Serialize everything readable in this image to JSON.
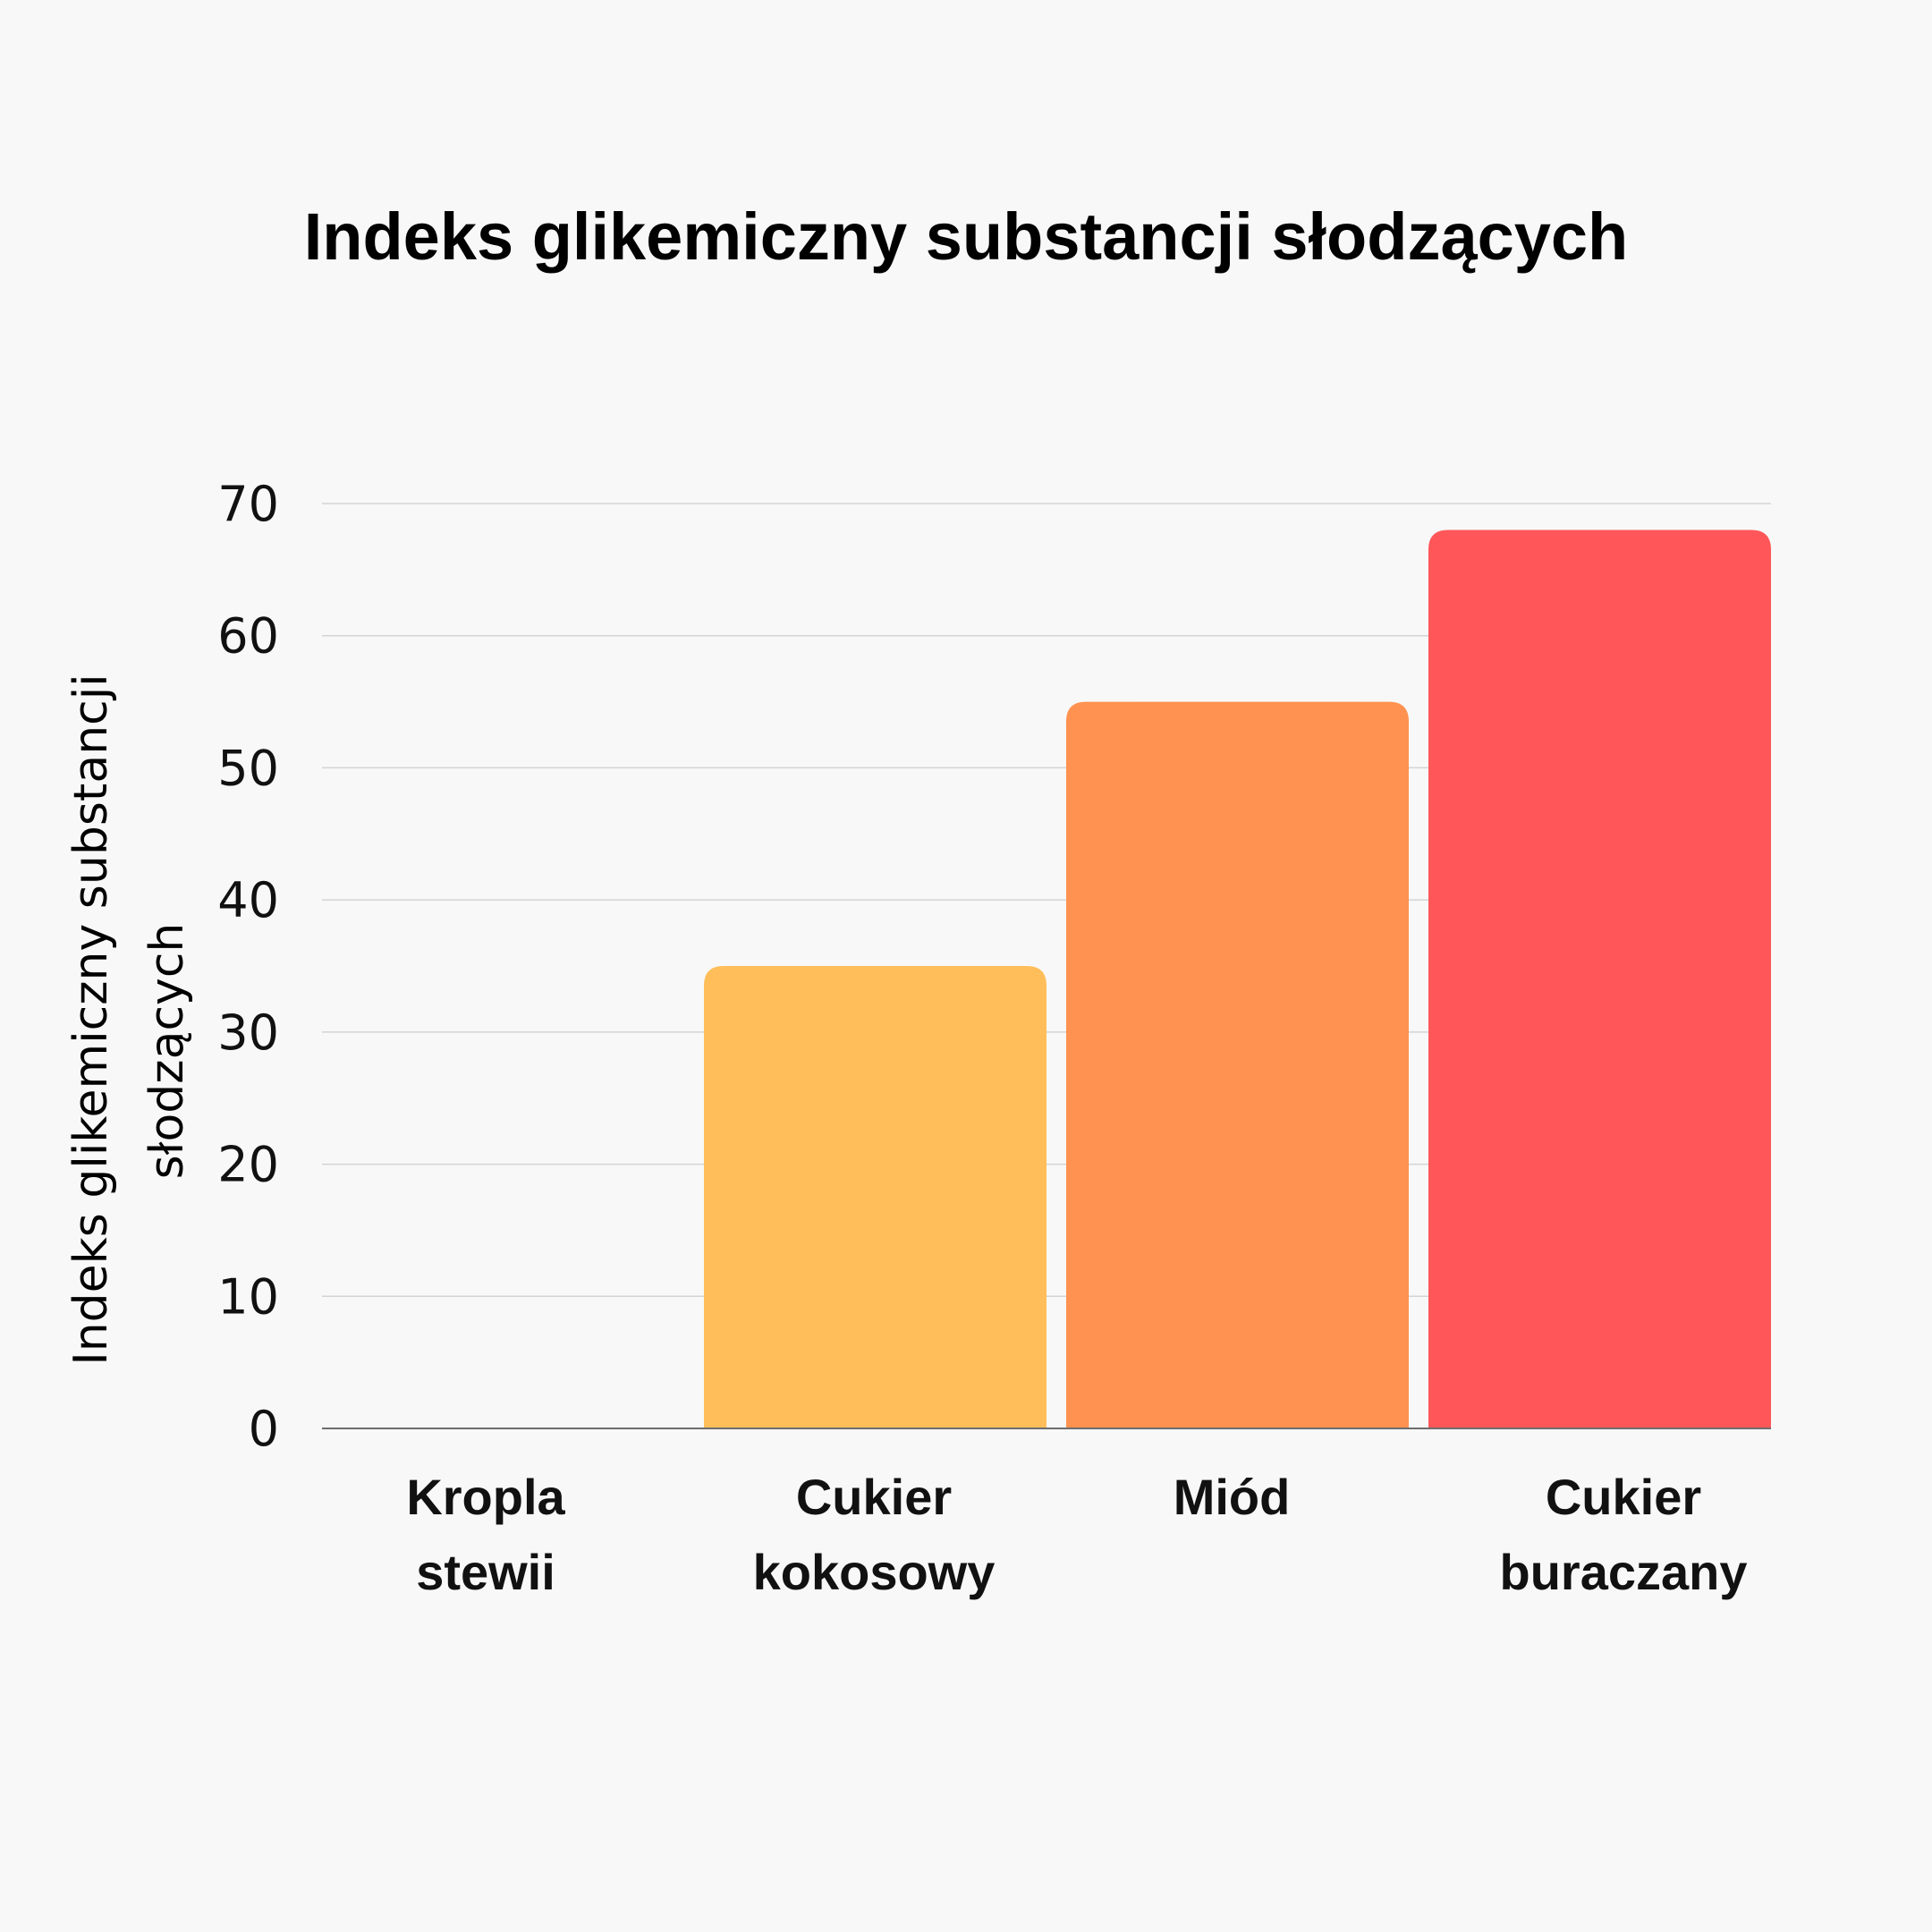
{
  "chart_data": {
    "type": "bar",
    "title": "Indeks glikemiczny substancji słodzących",
    "ylabel_lines": [
      "Indeks glikemiczny substancji",
      "słodzących"
    ],
    "xlabel": "",
    "categories": [
      {
        "lines": [
          "Kropla",
          "stewii"
        ]
      },
      {
        "lines": [
          "Cukier",
          "kokosowy"
        ]
      },
      {
        "lines": [
          "Miód"
        ]
      },
      {
        "lines": [
          "Cukier",
          "buraczany"
        ]
      }
    ],
    "values": [
      0,
      35,
      55,
      68
    ],
    "colors": [
      "#ffbe5a",
      "#ffbe5a",
      "#ff9250",
      "#ff5759"
    ],
    "ylim": [
      0,
      70
    ],
    "yticks": [
      0,
      10,
      20,
      30,
      40,
      50,
      60,
      70
    ],
    "grid": true,
    "legend": "none"
  }
}
